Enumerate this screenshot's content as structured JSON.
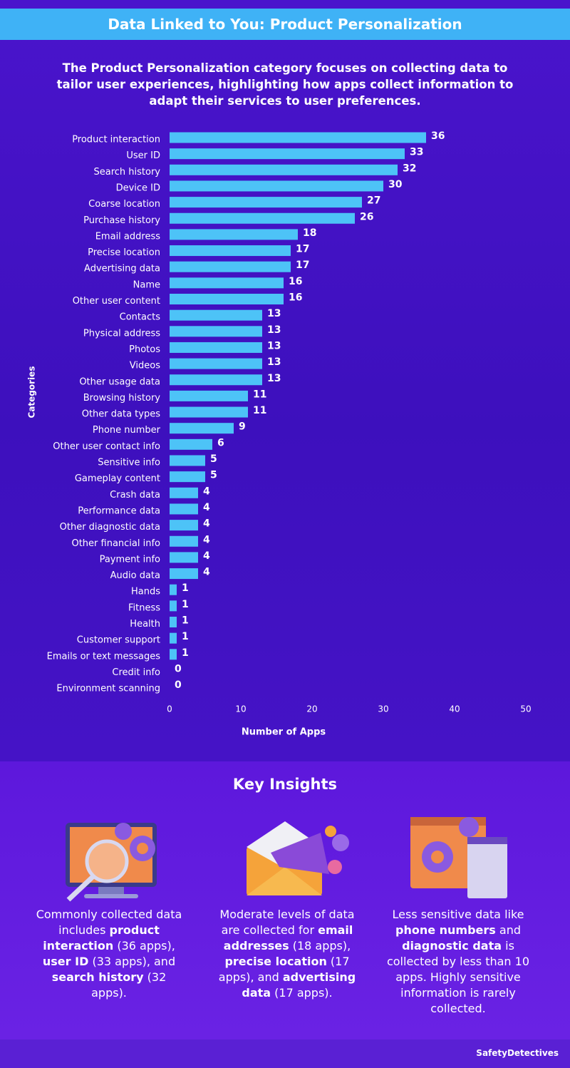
{
  "header": {
    "title": "Data Linked to You: Product Personalization",
    "subtitle": "The Product Personalization category focuses on collecting data to tailor user experiences, highlighting how apps collect information to adapt their services to user preferences."
  },
  "chart_data": {
    "type": "bar",
    "orientation": "horizontal",
    "color": "#4dc3f7",
    "xlabel": "Number of Apps",
    "ylabel": "Categories",
    "categories": [
      "Product interaction",
      "User ID",
      "Search history",
      "Device ID",
      "Coarse location",
      "Purchase history",
      "Email address",
      "Precise location",
      "Advertising data",
      "Name",
      "Other user content",
      "Contacts",
      "Physical address",
      "Photos",
      "Videos",
      "Other usage data",
      "Browsing history",
      "Other data types",
      "Phone number",
      "Other user contact info",
      "Sensitive info",
      "Gameplay content",
      "Crash data",
      "Performance data",
      "Other diagnostic data",
      "Other financial info",
      "Payment info",
      "Audio data",
      "Hands",
      "Fitness",
      "Health",
      "Customer support",
      "Emails or text messages",
      "Credit info",
      "Environment scanning"
    ],
    "values": [
      36,
      33,
      32,
      30,
      27,
      26,
      18,
      17,
      17,
      16,
      16,
      13,
      13,
      13,
      13,
      13,
      11,
      11,
      9,
      6,
      5,
      5,
      4,
      4,
      4,
      4,
      4,
      4,
      1,
      1,
      1,
      1,
      1,
      0,
      0
    ],
    "xlim": [
      0,
      50
    ],
    "xticks": [
      0,
      10,
      20,
      30,
      40,
      50
    ]
  },
  "insights": {
    "title": "Key Insights",
    "items": [
      [
        "Commonly collected data includes ",
        "product interaction",
        " (36 apps), ",
        "user ID",
        " (33 apps), and ",
        "search history",
        " (32 apps)."
      ],
      [
        "Moderate levels of data are collected for ",
        "email addresses",
        " (18 apps), ",
        "precise location",
        " (17 apps), and ",
        "advertising data",
        " (17 apps)."
      ],
      [
        "Less sensitive data like ",
        "phone numbers",
        " and ",
        "diagnostic data",
        " is collected by less than 10 apps. Highly sensitive information is rarely collected."
      ]
    ]
  },
  "footer": {
    "logo": "SafetyDetectives"
  }
}
